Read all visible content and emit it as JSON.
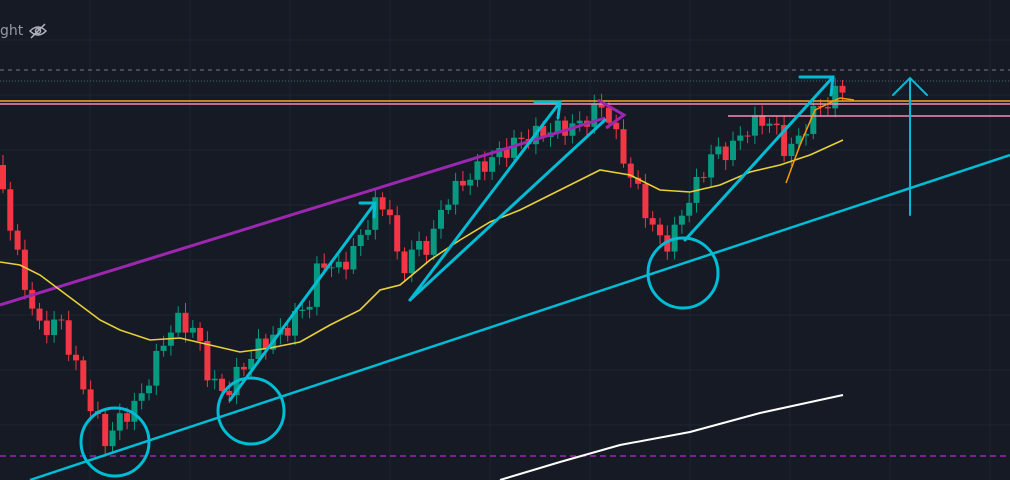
{
  "legend": {
    "label": "ght"
  }
}
